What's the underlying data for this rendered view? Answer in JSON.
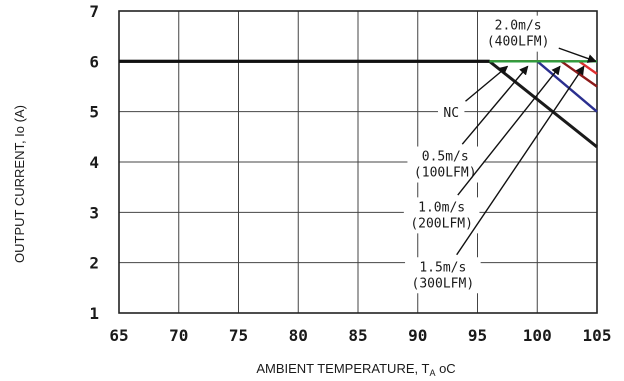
{
  "chart_data": {
    "type": "line",
    "xlabel": "AMBIENT TEMPERATURE, T",
    "xlabel_sub": "A",
    "xlabel_unit": " oC",
    "ylabel": "OUTPUT CURRENT, Io  (A)",
    "xlim": [
      65,
      105
    ],
    "ylim": [
      1,
      7
    ],
    "xticks": [
      "65",
      "70",
      "75",
      "80",
      "85",
      "90",
      "95",
      "100",
      "105"
    ],
    "yticks": [
      "1",
      "2",
      "3",
      "4",
      "5",
      "6",
      "7"
    ],
    "grid": true,
    "series": [
      {
        "name": "NC",
        "color": "#1a1a1a",
        "x": [
          65,
          96,
          105
        ],
        "y": [
          6,
          6,
          4.3
        ]
      },
      {
        "name": "0.5m/s (100LFM)",
        "color": "#2b2f8f",
        "x": [
          65,
          100,
          105
        ],
        "y": [
          6,
          6,
          5
        ]
      },
      {
        "name": "1.0m/s (200LFM)",
        "color": "#8b1a1a",
        "x": [
          65,
          102,
          105
        ],
        "y": [
          6,
          6,
          5.5
        ]
      },
      {
        "name": "1.5m/s (300LFM)",
        "color": "#e03030",
        "x": [
          65,
          103.5,
          105
        ],
        "y": [
          6,
          6,
          5.75
        ]
      },
      {
        "name": "2.0m/s (400LFM)",
        "color": "#2e9e3e",
        "x": [
          65,
          105
        ],
        "y": [
          6,
          6
        ]
      }
    ],
    "annotations": [
      {
        "lines": [
          "2.0m/s",
          "(400LFM)"
        ],
        "x": 98.4,
        "y": 6.55,
        "arrow_to": [
          104.9,
          6.0
        ]
      },
      {
        "lines": [
          "NC"
        ],
        "x": 92.8,
        "y": 4.97,
        "arrow_to": [
          97.5,
          5.9
        ]
      },
      {
        "lines": [
          "0.5m/s",
          "(100LFM)"
        ],
        "x": 92.3,
        "y": 3.95,
        "arrow_to": [
          99.2,
          5.9
        ]
      },
      {
        "lines": [
          "1.0m/s",
          "(200LFM)"
        ],
        "x": 92.0,
        "y": 2.94,
        "arrow_to": [
          101.9,
          5.9
        ]
      },
      {
        "lines": [
          "1.5m/s",
          "(300LFM)"
        ],
        "x": 92.1,
        "y": 1.75,
        "arrow_to": [
          103.9,
          5.9
        ]
      }
    ]
  }
}
